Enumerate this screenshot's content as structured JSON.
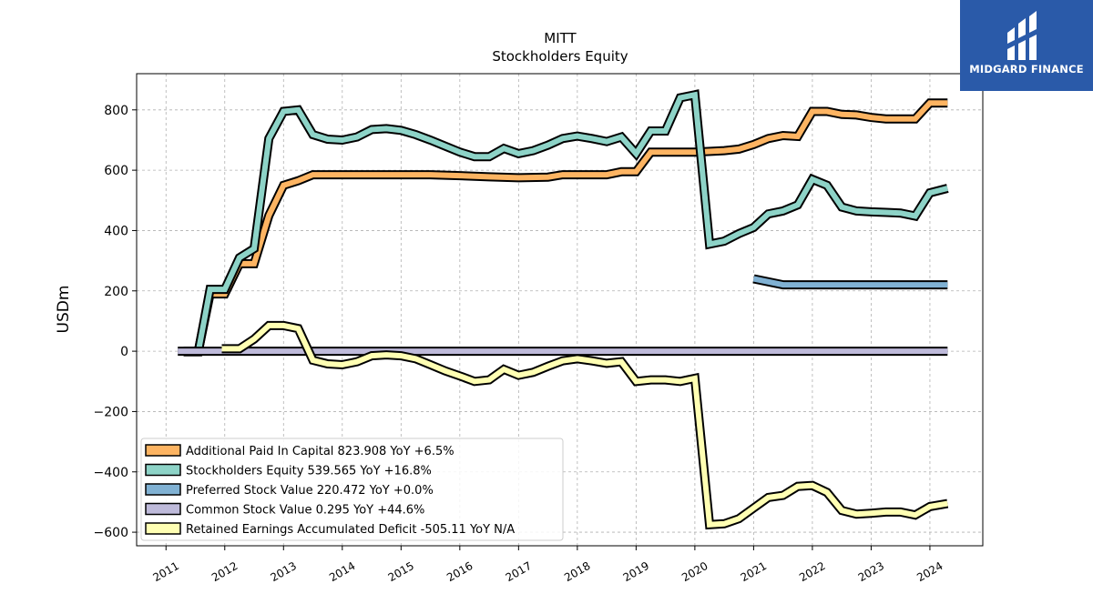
{
  "brand": {
    "name": "MIDGARD FINANCE",
    "icon": "midgard-logo-icon",
    "color": "#2a5aa9"
  },
  "chart_data": {
    "type": "line",
    "title": "MITT",
    "subtitle": "Stockholders  Equity",
    "xlabel": "",
    "ylabel": "USDm",
    "xlim": [
      2010.5,
      2024.9
    ],
    "ylim": [
      -645,
      920
    ],
    "x_ticks": [
      "2011",
      "2012",
      "2013",
      "2014",
      "2015",
      "2016",
      "2017",
      "2018",
      "2019",
      "2020",
      "2021",
      "2022",
      "2023",
      "2024"
    ],
    "y_ticks": [
      800,
      600,
      400,
      200,
      0,
      -200,
      -400,
      -600
    ],
    "y_tick_labels": [
      "800",
      "600",
      "400",
      "200",
      "0",
      "−200",
      "−400",
      "−600"
    ],
    "grid": true,
    "legend_position": "lower-left",
    "series": [
      {
        "name": "Additional Paid In Capital",
        "legend_label": "Additional Paid In Capital  823.908 YoY +6.5%",
        "color": "#fdb462",
        "points": [
          [
            2011.3,
            0
          ],
          [
            2011.55,
            0
          ],
          [
            2011.75,
            190
          ],
          [
            2012.0,
            190
          ],
          [
            2012.25,
            290
          ],
          [
            2012.5,
            290
          ],
          [
            2012.75,
            450
          ],
          [
            2013.0,
            550
          ],
          [
            2013.25,
            565
          ],
          [
            2013.5,
            585
          ],
          [
            2014.0,
            585
          ],
          [
            2015.0,
            585
          ],
          [
            2015.5,
            585
          ],
          [
            2016.0,
            582
          ],
          [
            2016.5,
            578
          ],
          [
            2017.0,
            575
          ],
          [
            2017.5,
            577
          ],
          [
            2017.75,
            585
          ],
          [
            2018.0,
            585
          ],
          [
            2018.5,
            585
          ],
          [
            2018.75,
            595
          ],
          [
            2019.0,
            595
          ],
          [
            2019.25,
            660
          ],
          [
            2019.5,
            660
          ],
          [
            2020.0,
            660
          ],
          [
            2020.5,
            665
          ],
          [
            2020.75,
            670
          ],
          [
            2021.0,
            685
          ],
          [
            2021.25,
            705
          ],
          [
            2021.5,
            715
          ],
          [
            2021.75,
            712
          ],
          [
            2022.0,
            795
          ],
          [
            2022.25,
            795
          ],
          [
            2022.5,
            785
          ],
          [
            2022.75,
            783
          ],
          [
            2023.0,
            775
          ],
          [
            2023.25,
            770
          ],
          [
            2023.5,
            770
          ],
          [
            2023.75,
            770
          ],
          [
            2024.0,
            823
          ],
          [
            2024.3,
            823
          ]
        ]
      },
      {
        "name": "Stockholders Equity",
        "legend_label": "Stockholders Equity  539.565 YoY +16.8%",
        "color": "#8dd3c7",
        "points": [
          [
            2011.3,
            -2
          ],
          [
            2011.55,
            -2
          ],
          [
            2011.75,
            205
          ],
          [
            2012.0,
            205
          ],
          [
            2012.25,
            310
          ],
          [
            2012.5,
            340
          ],
          [
            2012.75,
            705
          ],
          [
            2013.0,
            795
          ],
          [
            2013.25,
            800
          ],
          [
            2013.5,
            718
          ],
          [
            2013.75,
            703
          ],
          [
            2014.0,
            700
          ],
          [
            2014.25,
            710
          ],
          [
            2014.5,
            735
          ],
          [
            2014.75,
            738
          ],
          [
            2015.0,
            732
          ],
          [
            2015.25,
            718
          ],
          [
            2015.5,
            700
          ],
          [
            2015.75,
            680
          ],
          [
            2016.0,
            660
          ],
          [
            2016.25,
            645
          ],
          [
            2016.5,
            645
          ],
          [
            2016.75,
            672
          ],
          [
            2017.0,
            655
          ],
          [
            2017.25,
            665
          ],
          [
            2017.5,
            683
          ],
          [
            2017.75,
            705
          ],
          [
            2018.0,
            713
          ],
          [
            2018.25,
            705
          ],
          [
            2018.5,
            695
          ],
          [
            2018.75,
            710
          ],
          [
            2019.0,
            655
          ],
          [
            2019.25,
            730
          ],
          [
            2019.5,
            730
          ],
          [
            2019.75,
            840
          ],
          [
            2020.0,
            850
          ],
          [
            2020.25,
            355
          ],
          [
            2020.5,
            365
          ],
          [
            2020.75,
            390
          ],
          [
            2021.0,
            410
          ],
          [
            2021.25,
            455
          ],
          [
            2021.5,
            465
          ],
          [
            2021.75,
            485
          ],
          [
            2022.0,
            570
          ],
          [
            2022.25,
            550
          ],
          [
            2022.5,
            478
          ],
          [
            2022.75,
            465
          ],
          [
            2023.0,
            462
          ],
          [
            2023.25,
            460
          ],
          [
            2023.5,
            458
          ],
          [
            2023.75,
            448
          ],
          [
            2024.0,
            525
          ],
          [
            2024.3,
            540
          ]
        ]
      },
      {
        "name": "Preferred Stock Value",
        "legend_label": "Preferred Stock Value  220.472 YoY +0.0%",
        "color": "#80b1d3",
        "points": [
          [
            2021.0,
            240
          ],
          [
            2021.5,
            220
          ],
          [
            2022.0,
            220
          ],
          [
            2023.0,
            220
          ],
          [
            2024.3,
            220
          ]
        ]
      },
      {
        "name": "Common Stock Value",
        "legend_label": "Common Stock Value  0.295 YoY +44.6%",
        "color": "#bebada",
        "points": [
          [
            2011.2,
            0
          ],
          [
            2012.0,
            0
          ],
          [
            2016.0,
            0
          ],
          [
            2020.0,
            0
          ],
          [
            2024.3,
            0
          ]
        ]
      },
      {
        "name": "Retained Earnings Accumulated Deficit",
        "legend_label": "Retained Earnings Accumulated Deficit  -505.11 YoY N/A",
        "color": "#ffffb3",
        "points": [
          [
            2011.95,
            8
          ],
          [
            2012.25,
            8
          ],
          [
            2012.5,
            40
          ],
          [
            2012.75,
            85
          ],
          [
            2013.0,
            85
          ],
          [
            2013.25,
            75
          ],
          [
            2013.5,
            -30
          ],
          [
            2013.75,
            -42
          ],
          [
            2014.0,
            -45
          ],
          [
            2014.25,
            -35
          ],
          [
            2014.5,
            -15
          ],
          [
            2014.75,
            -12
          ],
          [
            2015.0,
            -15
          ],
          [
            2015.25,
            -25
          ],
          [
            2015.5,
            -45
          ],
          [
            2015.75,
            -65
          ],
          [
            2016.0,
            -82
          ],
          [
            2016.25,
            -100
          ],
          [
            2016.5,
            -95
          ],
          [
            2016.75,
            -60
          ],
          [
            2017.0,
            -80
          ],
          [
            2017.25,
            -70
          ],
          [
            2017.5,
            -50
          ],
          [
            2017.75,
            -32
          ],
          [
            2018.0,
            -25
          ],
          [
            2018.25,
            -32
          ],
          [
            2018.5,
            -40
          ],
          [
            2018.75,
            -35
          ],
          [
            2019.0,
            -100
          ],
          [
            2019.25,
            -95
          ],
          [
            2019.5,
            -95
          ],
          [
            2019.75,
            -100
          ],
          [
            2020.0,
            -90
          ],
          [
            2020.25,
            -575
          ],
          [
            2020.5,
            -572
          ],
          [
            2020.75,
            -555
          ],
          [
            2021.0,
            -520
          ],
          [
            2021.25,
            -485
          ],
          [
            2021.5,
            -478
          ],
          [
            2021.75,
            -448
          ],
          [
            2022.0,
            -445
          ],
          [
            2022.25,
            -468
          ],
          [
            2022.5,
            -528
          ],
          [
            2022.75,
            -540
          ],
          [
            2023.0,
            -537
          ],
          [
            2023.25,
            -533
          ],
          [
            2023.5,
            -533
          ],
          [
            2023.75,
            -543
          ],
          [
            2024.0,
            -515
          ],
          [
            2024.3,
            -505
          ]
        ]
      }
    ]
  }
}
